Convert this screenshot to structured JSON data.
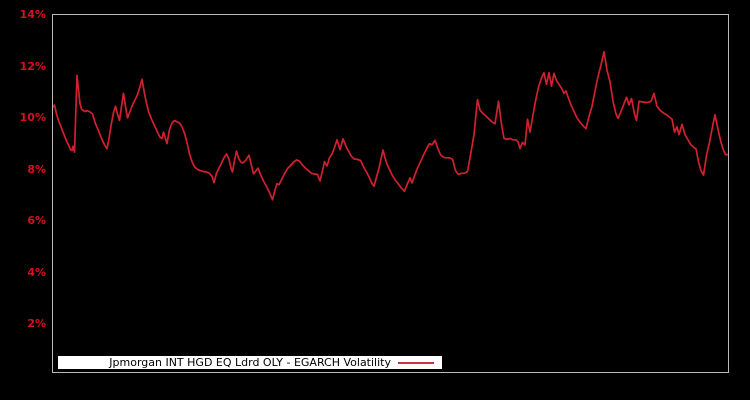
{
  "figure": {
    "background": "#000000",
    "plot_border_color": "#b9b9b9"
  },
  "y_axis": {
    "label_color": "#d8101c",
    "ticks": [
      {
        "label": "14%",
        "value": 14
      },
      {
        "label": "12%",
        "value": 12
      },
      {
        "label": "10%",
        "value": 10
      },
      {
        "label": "8%",
        "value": 8
      },
      {
        "label": "6%",
        "value": 6
      },
      {
        "label": "4%",
        "value": 4
      },
      {
        "label": "2%",
        "value": 2
      }
    ]
  },
  "legend": {
    "label": "Jpmorgan INT HGD EQ Ldrd OLY - EGARCH Volatility",
    "text_color": "#000000",
    "background": "#ffffff",
    "sample_line_color": "#c9353f"
  },
  "chart_data": {
    "type": "line",
    "title": "",
    "xlabel": "",
    "ylabel": "",
    "x_tick_labels": [],
    "ylim_pct": [
      0.1,
      14.05
    ],
    "yticks_pct": [
      2,
      4,
      6,
      8,
      10,
      12,
      14
    ],
    "grid": false,
    "legend_position": "bottom-left-inside",
    "series": [
      {
        "name": "Jpmorgan INT HGD EQ Ldrd OLY - EGARCH Volatility",
        "color": "#d2202e",
        "x_unit": "plot-pixel (no x tick labels shown)",
        "y_unit": "percent volatility",
        "points": [
          [
            52,
            10.45
          ],
          [
            54,
            10.55
          ],
          [
            56,
            10.2
          ],
          [
            58,
            9.95
          ],
          [
            60,
            9.75
          ],
          [
            62,
            9.55
          ],
          [
            64,
            9.35
          ],
          [
            66,
            9.15
          ],
          [
            68,
            9.0
          ],
          [
            70,
            8.82
          ],
          [
            71.5,
            8.78
          ],
          [
            72.5,
            8.95
          ],
          [
            74,
            8.72
          ],
          [
            76.5,
            11.7
          ],
          [
            78,
            11.15
          ],
          [
            79.5,
            10.6
          ],
          [
            81,
            10.4
          ],
          [
            84,
            10.3
          ],
          [
            87,
            10.33
          ],
          [
            90,
            10.27
          ],
          [
            92,
            10.2
          ],
          [
            95,
            9.82
          ],
          [
            98,
            9.55
          ],
          [
            101,
            9.25
          ],
          [
            104,
            9.0
          ],
          [
            106.5,
            8.85
          ],
          [
            108.5,
            9.25
          ],
          [
            111,
            9.85
          ],
          [
            113,
            10.25
          ],
          [
            115,
            10.5
          ],
          [
            117,
            10.2
          ],
          [
            119,
            9.95
          ],
          [
            121,
            10.5
          ],
          [
            123,
            11.0
          ],
          [
            125,
            10.5
          ],
          [
            127,
            10.05
          ],
          [
            129.5,
            10.3
          ],
          [
            132,
            10.55
          ],
          [
            134.5,
            10.75
          ],
          [
            137,
            10.95
          ],
          [
            139,
            11.2
          ],
          [
            141.5,
            11.55
          ],
          [
            143.5,
            11.1
          ],
          [
            145.5,
            10.7
          ],
          [
            148,
            10.3
          ],
          [
            151,
            10.0
          ],
          [
            154,
            9.75
          ],
          [
            157,
            9.5
          ],
          [
            159.5,
            9.3
          ],
          [
            161.5,
            9.25
          ],
          [
            163,
            9.5
          ],
          [
            165,
            9.25
          ],
          [
            166.5,
            9.05
          ],
          [
            169,
            9.6
          ],
          [
            171.5,
            9.85
          ],
          [
            174,
            9.95
          ],
          [
            176.5,
            9.9
          ],
          [
            179,
            9.85
          ],
          [
            181.5,
            9.7
          ],
          [
            184,
            9.45
          ],
          [
            186.5,
            9.1
          ],
          [
            189,
            8.65
          ],
          [
            191.5,
            8.35
          ],
          [
            194,
            8.15
          ],
          [
            197,
            8.05
          ],
          [
            200,
            8.0
          ],
          [
            203,
            7.97
          ],
          [
            206,
            7.95
          ],
          [
            209,
            7.9
          ],
          [
            211.5,
            7.78
          ],
          [
            213.5,
            7.53
          ],
          [
            216,
            7.9
          ],
          [
            218.5,
            8.1
          ],
          [
            221,
            8.3
          ],
          [
            223.5,
            8.5
          ],
          [
            226,
            8.65
          ],
          [
            228.5,
            8.45
          ],
          [
            230.5,
            8.1
          ],
          [
            232,
            7.95
          ],
          [
            234,
            8.4
          ],
          [
            236,
            8.76
          ],
          [
            238,
            8.5
          ],
          [
            240,
            8.35
          ],
          [
            242,
            8.3
          ],
          [
            244,
            8.35
          ],
          [
            246,
            8.45
          ],
          [
            248.5,
            8.6
          ],
          [
            251,
            8.2
          ],
          [
            253,
            7.88
          ],
          [
            255.5,
            8.0
          ],
          [
            257.5,
            8.1
          ],
          [
            260,
            7.85
          ],
          [
            263,
            7.6
          ],
          [
            266,
            7.38
          ],
          [
            269,
            7.15
          ],
          [
            272,
            6.87
          ],
          [
            274.5,
            7.25
          ],
          [
            276.5,
            7.5
          ],
          [
            278.5,
            7.45
          ],
          [
            281,
            7.65
          ],
          [
            284,
            7.88
          ],
          [
            287,
            8.08
          ],
          [
            290,
            8.2
          ],
          [
            293,
            8.33
          ],
          [
            296,
            8.42
          ],
          [
            299,
            8.37
          ],
          [
            302,
            8.22
          ],
          [
            305,
            8.1
          ],
          [
            308,
            8.0
          ],
          [
            311,
            7.9
          ],
          [
            314,
            7.87
          ],
          [
            317,
            7.85
          ],
          [
            319.5,
            7.6
          ],
          [
            322,
            8.0
          ],
          [
            324,
            8.35
          ],
          [
            326.5,
            8.18
          ],
          [
            329,
            8.5
          ],
          [
            331.5,
            8.65
          ],
          [
            334,
            8.9
          ],
          [
            336.5,
            9.2
          ],
          [
            339.5,
            8.82
          ],
          [
            342.5,
            9.23
          ],
          [
            345.5,
            8.95
          ],
          [
            348,
            8.76
          ],
          [
            351,
            8.55
          ],
          [
            354,
            8.45
          ],
          [
            357,
            8.44
          ],
          [
            360,
            8.4
          ],
          [
            363,
            8.15
          ],
          [
            366,
            7.95
          ],
          [
            369,
            7.72
          ],
          [
            371.5,
            7.5
          ],
          [
            373.5,
            7.4
          ],
          [
            376,
            7.75
          ],
          [
            378.5,
            8.1
          ],
          [
            380.5,
            8.45
          ],
          [
            382.5,
            8.8
          ],
          [
            384.5,
            8.5
          ],
          [
            386.5,
            8.25
          ],
          [
            389,
            8.05
          ],
          [
            392,
            7.8
          ],
          [
            395,
            7.62
          ],
          [
            398,
            7.48
          ],
          [
            401,
            7.32
          ],
          [
            404,
            7.2
          ],
          [
            407,
            7.5
          ],
          [
            409.5,
            7.72
          ],
          [
            411.5,
            7.52
          ],
          [
            414,
            7.8
          ],
          [
            417,
            8.1
          ],
          [
            420,
            8.35
          ],
          [
            423,
            8.6
          ],
          [
            426,
            8.85
          ],
          [
            429,
            9.05
          ],
          [
            431.5,
            9.0
          ],
          [
            434.5,
            9.18
          ],
          [
            437.5,
            8.85
          ],
          [
            440,
            8.62
          ],
          [
            443,
            8.52
          ],
          [
            446,
            8.5
          ],
          [
            449,
            8.5
          ],
          [
            452,
            8.45
          ],
          [
            455,
            8.0
          ],
          [
            458,
            7.85
          ],
          [
            461,
            7.9
          ],
          [
            464,
            7.9
          ],
          [
            467,
            7.97
          ],
          [
            470,
            8.6
          ],
          [
            473.5,
            9.4
          ],
          [
            477,
            10.76
          ],
          [
            479.5,
            10.35
          ],
          [
            482.5,
            10.22
          ],
          [
            485.5,
            10.12
          ],
          [
            488.5,
            10.0
          ],
          [
            491.5,
            9.9
          ],
          [
            494.5,
            9.82
          ],
          [
            498,
            10.7
          ],
          [
            501,
            9.8
          ],
          [
            503.5,
            9.25
          ],
          [
            506.5,
            9.22
          ],
          [
            509.5,
            9.25
          ],
          [
            512.5,
            9.2
          ],
          [
            515.5,
            9.2
          ],
          [
            517.5,
            9.12
          ],
          [
            519.5,
            8.86
          ],
          [
            522,
            9.1
          ],
          [
            524.5,
            9.0
          ],
          [
            527,
            10.0
          ],
          [
            529.5,
            9.5
          ],
          [
            532,
            10.05
          ],
          [
            535,
            10.7
          ],
          [
            538,
            11.25
          ],
          [
            541,
            11.6
          ],
          [
            543.5,
            11.8
          ],
          [
            546,
            11.35
          ],
          [
            548.5,
            11.8
          ],
          [
            551,
            11.28
          ],
          [
            553.5,
            11.78
          ],
          [
            556,
            11.5
          ],
          [
            558.5,
            11.35
          ],
          [
            561,
            11.2
          ],
          [
            563.5,
            11.0
          ],
          [
            565.5,
            11.1
          ],
          [
            567.5,
            10.87
          ],
          [
            570.5,
            10.55
          ],
          [
            573.5,
            10.3
          ],
          [
            576.5,
            10.05
          ],
          [
            579.5,
            9.88
          ],
          [
            582.5,
            9.75
          ],
          [
            585.5,
            9.63
          ],
          [
            588.5,
            10.1
          ],
          [
            591.5,
            10.5
          ],
          [
            594.5,
            11.1
          ],
          [
            597.5,
            11.65
          ],
          [
            600.5,
            12.1
          ],
          [
            603.5,
            12.62
          ],
          [
            606.5,
            11.9
          ],
          [
            609.5,
            11.45
          ],
          [
            612.5,
            10.7
          ],
          [
            615.5,
            10.2
          ],
          [
            617.5,
            10.03
          ],
          [
            620.5,
            10.3
          ],
          [
            623.5,
            10.6
          ],
          [
            626,
            10.85
          ],
          [
            628.5,
            10.55
          ],
          [
            631,
            10.8
          ],
          [
            634,
            10.2
          ],
          [
            636,
            9.95
          ],
          [
            638.5,
            10.7
          ],
          [
            641.5,
            10.67
          ],
          [
            644.5,
            10.65
          ],
          [
            647.5,
            10.65
          ],
          [
            650.5,
            10.7
          ],
          [
            653.5,
            11.0
          ],
          [
            656.5,
            10.5
          ],
          [
            659.5,
            10.35
          ],
          [
            662.5,
            10.25
          ],
          [
            665.5,
            10.18
          ],
          [
            668.5,
            10.1
          ],
          [
            671.5,
            10.0
          ],
          [
            674,
            9.5
          ],
          [
            676.5,
            9.7
          ],
          [
            678.5,
            9.4
          ],
          [
            681.5,
            9.8
          ],
          [
            684.5,
            9.4
          ],
          [
            687.5,
            9.2
          ],
          [
            690.5,
            9.0
          ],
          [
            693.5,
            8.9
          ],
          [
            695.5,
            8.85
          ],
          [
            698,
            8.35
          ],
          [
            700.5,
            8.0
          ],
          [
            703,
            7.83
          ],
          [
            706,
            8.6
          ],
          [
            709,
            9.1
          ],
          [
            712,
            9.7
          ],
          [
            714.5,
            10.17
          ],
          [
            717.5,
            9.6
          ],
          [
            720.5,
            9.1
          ],
          [
            722.5,
            8.85
          ],
          [
            725,
            8.62
          ],
          [
            728,
            8.63
          ]
        ]
      }
    ]
  }
}
